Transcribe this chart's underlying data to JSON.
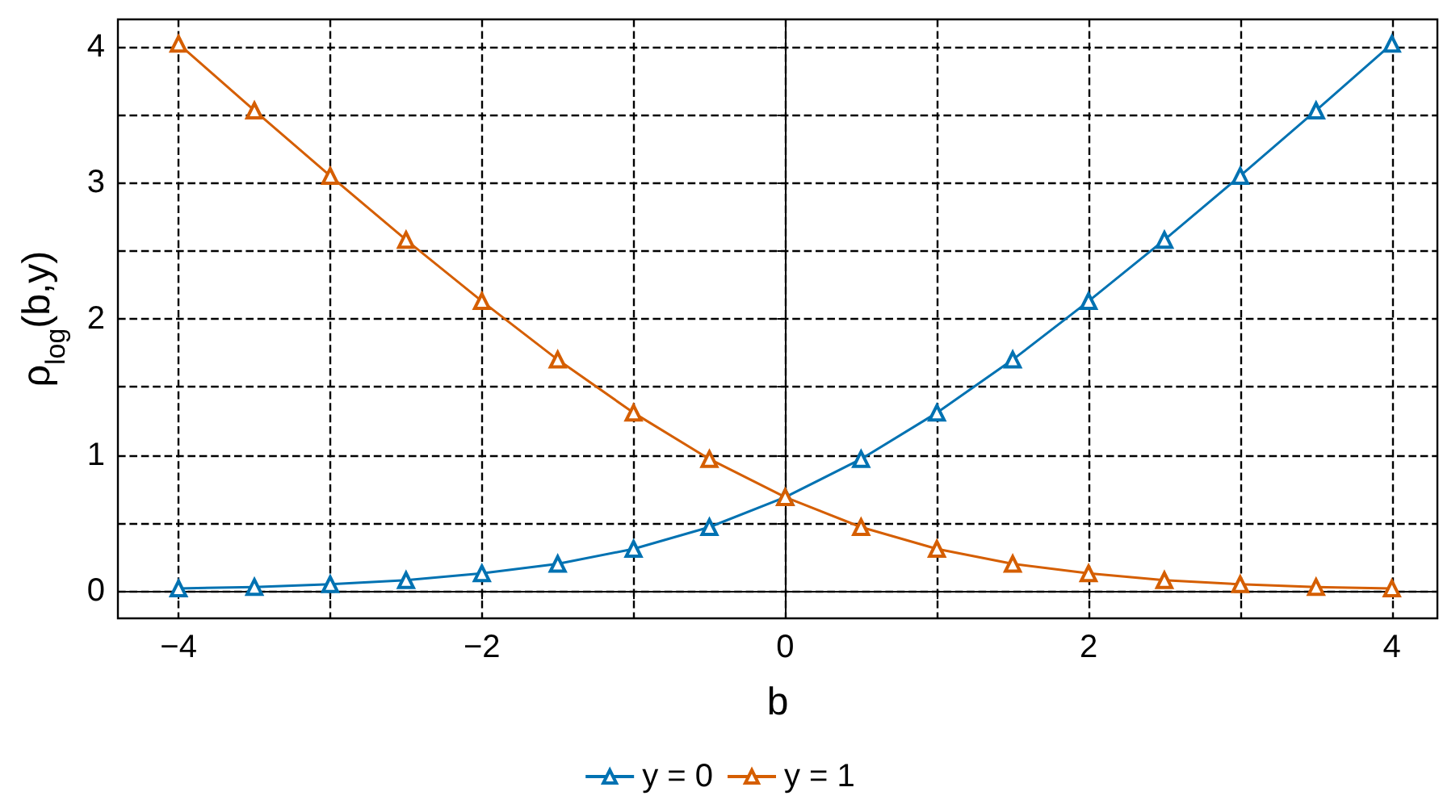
{
  "chart_data": {
    "type": "line",
    "xlabel": "b",
    "ylabel": "ρ$_{log}$(b,y)",
    "x": [
      -4,
      -3.5,
      -3,
      -2.5,
      -2,
      -1.5,
      -1,
      -0.5,
      0,
      0.5,
      1,
      1.5,
      2,
      2.5,
      3,
      3.5,
      4
    ],
    "series": [
      {
        "name": "y = 0",
        "color": "#0072b2",
        "values": [
          0.02,
          0.03,
          0.05,
          0.08,
          0.13,
          0.2,
          0.31,
          0.47,
          0.69,
          0.97,
          1.31,
          1.7,
          2.13,
          2.58,
          3.05,
          3.53,
          4.02
        ]
      },
      {
        "name": "y = 1",
        "color": "#d55e00",
        "values": [
          4.02,
          3.53,
          3.05,
          2.58,
          2.13,
          1.7,
          1.31,
          0.97,
          0.69,
          0.47,
          0.31,
          0.2,
          0.13,
          0.08,
          0.05,
          0.03,
          0.02
        ]
      }
    ],
    "xlim": [
      -4.4,
      4.3
    ],
    "ylim": [
      -0.2,
      4.2
    ],
    "xticks": [
      {
        "value": -4,
        "label": "−4"
      },
      {
        "value": -3,
        "label": null
      },
      {
        "value": -2,
        "label": "−2"
      },
      {
        "value": -1,
        "label": null
      },
      0,
      {
        "value": 1,
        "label": null
      },
      2,
      {
        "value": 3,
        "label": null
      },
      4
    ],
    "yticks": [
      0,
      {
        "value": 0.5,
        "label": null
      },
      1,
      {
        "value": 1.5,
        "label": null
      },
      2,
      {
        "value": 2.5,
        "label": null
      },
      3,
      {
        "value": 3.5,
        "label": null
      },
      4
    ],
    "grid": true,
    "legend": "bottom",
    "marker": "triangle",
    "line_style": "solid"
  }
}
